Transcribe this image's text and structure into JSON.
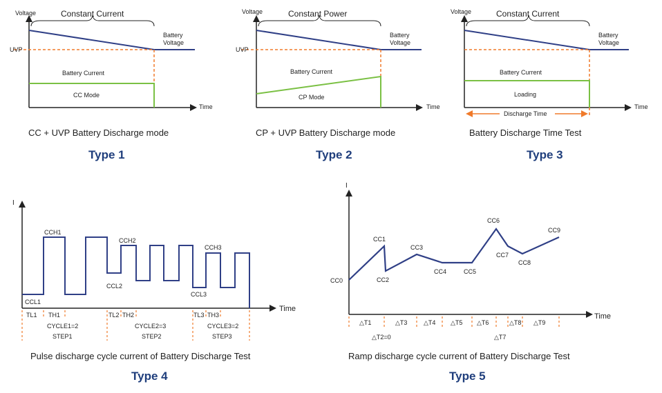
{
  "colors": {
    "axis": "#222222",
    "voltage_line": "#2f3f86",
    "current_line": "#7ac043",
    "marker": "#f07a2a",
    "type_title": "#1f3e7c"
  },
  "type1": {
    "y_axis": "Voltage",
    "x_axis": "Time",
    "region": "Constant Current",
    "battery_voltage": [
      "Battery",
      "Voltage"
    ],
    "uvp": "UVP",
    "battery_current": "Battery Current",
    "mode": "CC Mode",
    "caption": "CC + UVP Battery Discharge mode",
    "title": "Type 1"
  },
  "type2": {
    "y_axis": "Voltage",
    "x_axis": "Time",
    "region": "Constant Power",
    "battery_voltage": [
      "Battery",
      "Voltage"
    ],
    "uvp": "UVP",
    "battery_current": "Battery Current",
    "mode": "CP Mode",
    "caption": "CP + UVP Battery Discharge mode",
    "title": "Type 2"
  },
  "type3": {
    "y_axis": "Voltage",
    "x_axis": "Time",
    "region": "Constant Current",
    "battery_voltage": [
      "Battery",
      "Voltage"
    ],
    "battery_current": "Battery Current",
    "mode": "Loading",
    "discharge_time": "Discharge Time",
    "caption": "Battery Discharge Time Test",
    "title": "Type 3"
  },
  "type4": {
    "y_axis": "I",
    "x_axis": "Time",
    "levels": {
      "ccl1": "CCL1",
      "cch1": "CCH1",
      "cch2": "CCH2",
      "ccl2": "CCL2",
      "cch3": "CCH3",
      "ccl3": "CCL3"
    },
    "timing": {
      "tl1": "TL1",
      "th1": "TH1",
      "tl2": "TL2",
      "th2": "TH2",
      "tl3": "TL3",
      "th3": "TH3"
    },
    "cycles": [
      "CYCLE1=2",
      "CYCLE2=3",
      "CYCLE3=2"
    ],
    "steps": [
      "STEP1",
      "STEP2",
      "STEP3"
    ],
    "caption": "Pulse discharge cycle current of Battery Discharge Test",
    "title": "Type 4"
  },
  "type5": {
    "y_axis": "I",
    "x_axis": "Time",
    "points": [
      "CC0",
      "CC1",
      "CC2",
      "CC3",
      "CC4",
      "CC5",
      "CC6",
      "CC7",
      "CC8",
      "CC9"
    ],
    "deltas": [
      "△T1",
      "△T2=0",
      "△T3",
      "△T4",
      "△T5",
      "△T6",
      "△T7",
      "△T8",
      "△T9"
    ],
    "caption": "Ramp discharge cycle current of Battery Discharge Test",
    "title": "Type 5"
  }
}
